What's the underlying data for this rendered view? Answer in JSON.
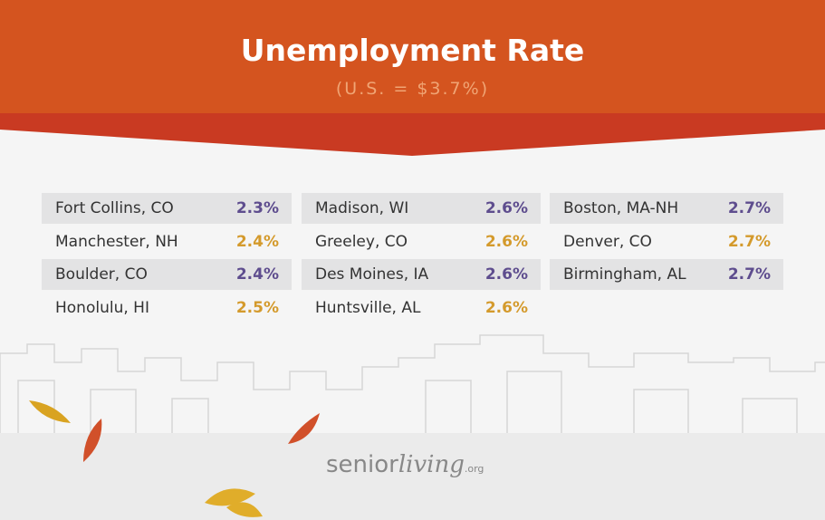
{
  "header": {
    "title": "Unemployment Rate",
    "subtitle": "(U.S. = $3.7%)"
  },
  "table": {
    "columns": [
      {
        "rows": [
          {
            "city": "Fort Collins, CO",
            "rate": "2.3%"
          },
          {
            "city": "Manchester, NH",
            "rate": "2.4%"
          },
          {
            "city": "Boulder, CO",
            "rate": "2.4%"
          },
          {
            "city": "Honolulu, HI",
            "rate": "2.5%"
          }
        ]
      },
      {
        "rows": [
          {
            "city": "Madison, WI",
            "rate": "2.6%"
          },
          {
            "city": "Greeley, CO",
            "rate": "2.6%"
          },
          {
            "city": "Des Moines, IA",
            "rate": "2.6%"
          },
          {
            "city": "Huntsville, AL",
            "rate": "2.6%"
          }
        ]
      },
      {
        "rows": [
          {
            "city": "Boston, MA-NH",
            "rate": "2.7%"
          },
          {
            "city": "Denver, CO",
            "rate": "2.7%"
          },
          {
            "city": "Birmingham, AL",
            "rate": "2.7%"
          }
        ]
      }
    ]
  },
  "logo": {
    "senior": "senior",
    "living": "living",
    "org": ".org"
  }
}
